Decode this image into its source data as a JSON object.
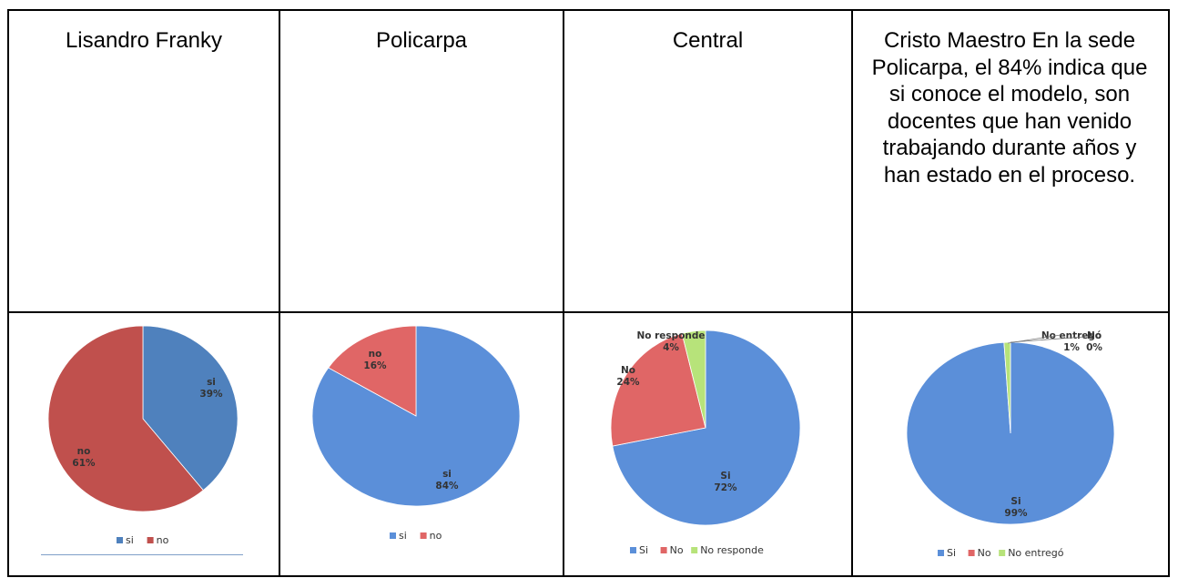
{
  "header": {
    "col1": "Lisandro Franky",
    "col2": "Policarpa",
    "col3": "Central",
    "col4": "Cristo Maestro En la sede Policarpa, el 84% indica que si conoce el modelo, son docentes que han venido trabajando durante años y han estado en el proceso."
  },
  "chart_data": [
    {
      "type": "pie",
      "categories": [
        "si",
        "no"
      ],
      "values": [
        39,
        61
      ],
      "labels": [
        "si\n39%",
        "no\n61%"
      ],
      "colors": [
        "#4f81bd",
        "#c0504d"
      ],
      "legend": [
        "si",
        "no"
      ],
      "legend_position": "bottom"
    },
    {
      "type": "pie",
      "categories": [
        "si",
        "no"
      ],
      "values": [
        84,
        16
      ],
      "labels": [
        "si\n84%",
        "no\n16%"
      ],
      "colors": [
        "#5b8fd9",
        "#e06666"
      ],
      "legend": [
        "si",
        "no"
      ],
      "legend_position": "bottom"
    },
    {
      "type": "pie",
      "categories": [
        "Si",
        "No",
        "No responde"
      ],
      "values": [
        72,
        24,
        4
      ],
      "labels": [
        "Si\n72%",
        "No\n24%",
        "No responde\n4%"
      ],
      "colors": [
        "#5b8fd9",
        "#e06666",
        "#b7e37a"
      ],
      "legend": [
        "Si",
        "No",
        "No responde"
      ],
      "legend_position": "bottom"
    },
    {
      "type": "pie",
      "categories": [
        "Si",
        "No",
        "No entregó"
      ],
      "values": [
        99,
        0,
        1
      ],
      "labels": [
        "Si\n99%",
        "No\n0%",
        "No entregó\n1%"
      ],
      "colors": [
        "#5b8fd9",
        "#e06666",
        "#b7e37a"
      ],
      "legend": [
        "Si",
        "No",
        "No entregó"
      ],
      "legend_position": "bottom"
    }
  ]
}
